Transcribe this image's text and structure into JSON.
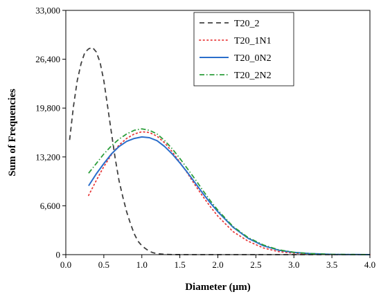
{
  "chart_data": {
    "type": "line",
    "title": "",
    "xlabel": "Diameter (µm)",
    "ylabel": "Sum of Frequencies",
    "xlim": [
      0.0,
      4.0
    ],
    "ylim": [
      0,
      33000
    ],
    "x_ticks": [
      0.0,
      0.5,
      1.0,
      1.5,
      2.0,
      2.5,
      3.0,
      3.5,
      4.0
    ],
    "x_tick_labels": [
      "0.0",
      "0.5",
      "1.0",
      "1.5",
      "2.0",
      "2.5",
      "3.0",
      "3.5",
      "4.0"
    ],
    "y_ticks": [
      0,
      6600,
      13200,
      19800,
      26400,
      33000
    ],
    "y_tick_labels": [
      "0",
      "6,600",
      "13,200",
      "19,800",
      "26,400",
      "33,000"
    ],
    "grid": false,
    "legend_position": "top-right",
    "series": [
      {
        "name": "T20_2",
        "color": "#404040",
        "dash": "dashed",
        "points": [
          [
            0.05,
            15500
          ],
          [
            0.1,
            20000
          ],
          [
            0.15,
            23500
          ],
          [
            0.2,
            25800
          ],
          [
            0.25,
            27300
          ],
          [
            0.3,
            27800
          ],
          [
            0.35,
            28000
          ],
          [
            0.4,
            27400
          ],
          [
            0.45,
            26000
          ],
          [
            0.5,
            23500
          ],
          [
            0.55,
            20000
          ],
          [
            0.6,
            16500
          ],
          [
            0.65,
            13000
          ],
          [
            0.7,
            10000
          ],
          [
            0.75,
            7800
          ],
          [
            0.8,
            5800
          ],
          [
            0.85,
            4200
          ],
          [
            0.9,
            2800
          ],
          [
            0.95,
            1800
          ],
          [
            1.0,
            1200
          ],
          [
            1.05,
            800
          ],
          [
            1.1,
            450
          ],
          [
            1.15,
            250
          ],
          [
            1.2,
            130
          ],
          [
            1.3,
            40
          ],
          [
            1.4,
            10
          ],
          [
            1.6,
            0
          ],
          [
            4.0,
            0
          ]
        ]
      },
      {
        "name": "T20_1N1",
        "color": "#e8393a",
        "dash": "dotted",
        "points": [
          [
            0.3,
            8000
          ],
          [
            0.4,
            10000
          ],
          [
            0.5,
            11900
          ],
          [
            0.6,
            13500
          ],
          [
            0.7,
            14800
          ],
          [
            0.8,
            15700
          ],
          [
            0.9,
            16300
          ],
          [
            1.0,
            16600
          ],
          [
            1.1,
            16500
          ],
          [
            1.2,
            16000
          ],
          [
            1.3,
            15100
          ],
          [
            1.4,
            13900
          ],
          [
            1.5,
            12500
          ],
          [
            1.6,
            11000
          ],
          [
            1.7,
            9400
          ],
          [
            1.8,
            7900
          ],
          [
            1.9,
            6500
          ],
          [
            2.0,
            5200
          ],
          [
            2.2,
            3100
          ],
          [
            2.4,
            1800
          ],
          [
            2.6,
            900
          ],
          [
            2.8,
            400
          ],
          [
            3.0,
            200
          ],
          [
            3.2,
            80
          ],
          [
            3.5,
            20
          ],
          [
            4.0,
            0
          ]
        ]
      },
      {
        "name": "T20_0N2",
        "color": "#2a6ecb",
        "dash": "solid",
        "points": [
          [
            0.3,
            9300
          ],
          [
            0.4,
            10900
          ],
          [
            0.5,
            12300
          ],
          [
            0.6,
            13600
          ],
          [
            0.7,
            14600
          ],
          [
            0.8,
            15300
          ],
          [
            0.9,
            15700
          ],
          [
            1.0,
            15900
          ],
          [
            1.1,
            15800
          ],
          [
            1.2,
            15400
          ],
          [
            1.3,
            14600
          ],
          [
            1.4,
            13600
          ],
          [
            1.5,
            12400
          ],
          [
            1.6,
            11100
          ],
          [
            1.7,
            9700
          ],
          [
            1.8,
            8300
          ],
          [
            1.9,
            7000
          ],
          [
            2.0,
            5800
          ],
          [
            2.2,
            3700
          ],
          [
            2.4,
            2200
          ],
          [
            2.6,
            1200
          ],
          [
            2.8,
            600
          ],
          [
            3.0,
            300
          ],
          [
            3.2,
            150
          ],
          [
            3.5,
            40
          ],
          [
            4.0,
            0
          ]
        ]
      },
      {
        "name": "T20_2N2",
        "color": "#2b9e3a",
        "dash": "dashdot",
        "points": [
          [
            0.3,
            11000
          ],
          [
            0.4,
            12300
          ],
          [
            0.5,
            13600
          ],
          [
            0.6,
            14700
          ],
          [
            0.7,
            15600
          ],
          [
            0.8,
            16300
          ],
          [
            0.9,
            16800
          ],
          [
            1.0,
            17000
          ],
          [
            1.1,
            16800
          ],
          [
            1.2,
            16300
          ],
          [
            1.3,
            15400
          ],
          [
            1.4,
            14300
          ],
          [
            1.5,
            13000
          ],
          [
            1.6,
            11600
          ],
          [
            1.7,
            10200
          ],
          [
            1.8,
            8700
          ],
          [
            1.9,
            7300
          ],
          [
            2.0,
            6000
          ],
          [
            2.2,
            3800
          ],
          [
            2.4,
            2300
          ],
          [
            2.6,
            1300
          ],
          [
            2.8,
            650
          ],
          [
            3.0,
            320
          ],
          [
            3.2,
            150
          ],
          [
            3.5,
            40
          ],
          [
            4.0,
            0
          ]
        ]
      }
    ]
  }
}
